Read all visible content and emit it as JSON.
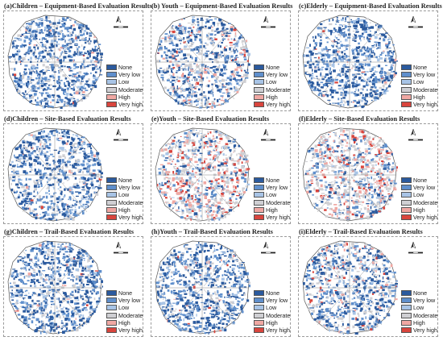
{
  "legend": {
    "items": [
      {
        "label": "None",
        "color": "#2b5a9e"
      },
      {
        "label": "Very low",
        "color": "#5f8fcc"
      },
      {
        "label": "Low",
        "color": "#a8c4e6"
      },
      {
        "label": "Moderate",
        "color": "#cfcfd3"
      },
      {
        "label": "High",
        "color": "#f0a8a3"
      },
      {
        "label": "Very high",
        "color": "#d9453d"
      }
    ]
  },
  "panels": [
    {
      "title": "(a)Children – Equipment-Based Evaluation Results",
      "scheme": "blue"
    },
    {
      "title": "(b)  Youth – Equipment-Based Evaluation Results",
      "scheme": "mixed"
    },
    {
      "title": "(c)Elderly – Equipment-Based Evaluation Results",
      "scheme": "blue"
    },
    {
      "title": "(d)Children – Site-Based Evaluation Results",
      "scheme": "blue"
    },
    {
      "title": "(e)Youth – Site-Based Evaluation Results",
      "scheme": "red"
    },
    {
      "title": "(f)Elderly – Site-Based Evaluation Results",
      "scheme": "red"
    },
    {
      "title": "(g)Children – Trail-Based Evaluation Results",
      "scheme": "blue"
    },
    {
      "title": "(h)Youth – Trail-Based Evaluation Results",
      "scheme": "blue"
    },
    {
      "title": "(i)Elderly – Trail-Based Evaluation Results",
      "scheme": "mixed"
    }
  ]
}
